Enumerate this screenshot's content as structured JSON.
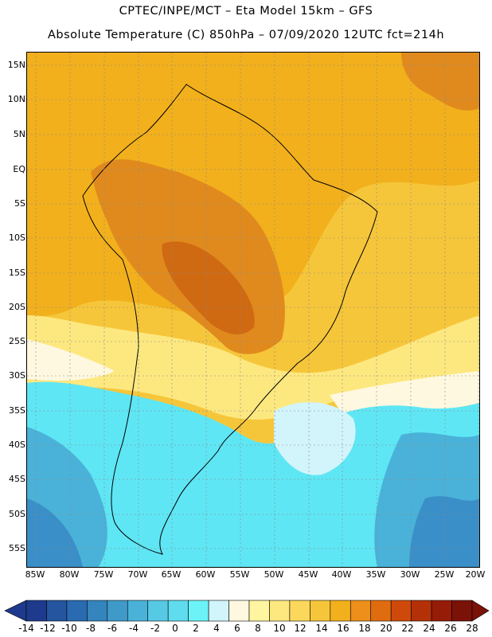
{
  "header": {
    "line1": "CPTEC/INPE/MCT  –   Eta Model 15km  –  GFS",
    "line2": "Absolute Temperature (C) 850hPa – 07/09/2020 12UTC fct=214h"
  },
  "axes": {
    "lat_labels": [
      "15N",
      "10N",
      "5N",
      "EQ",
      "5S",
      "10S",
      "15S",
      "20S",
      "25S",
      "30S",
      "35S",
      "40S",
      "45S",
      "50S",
      "55S"
    ],
    "lon_labels": [
      "85W",
      "80W",
      "75W",
      "70W",
      "65W",
      "60W",
      "55W",
      "50W",
      "45W",
      "40W",
      "35W",
      "30W",
      "25W",
      "20W"
    ]
  },
  "colorbar": {
    "labels": [
      "-14",
      "-12",
      "-10",
      "-8",
      "-6",
      "-4",
      "-2",
      "0",
      "2",
      "4",
      "6",
      "8",
      "10",
      "12",
      "14",
      "16",
      "18",
      "20",
      "22",
      "24",
      "26",
      "28"
    ],
    "colors": [
      "#1e3a8c",
      "#24559e",
      "#2a6ab0",
      "#3484bd",
      "#3f9ac9",
      "#4ab2d8",
      "#56c9e4",
      "#5fdcee",
      "#6cf3f7",
      "#d2f4fb",
      "#fff8e0",
      "#fff5a0",
      "#fde880",
      "#fbd85c",
      "#f6c63a",
      "#f2b01c",
      "#ed8f1a",
      "#e06c10",
      "#cf4a0a",
      "#b43108",
      "#961c08",
      "#7a1208"
    ]
  },
  "map_colors": {
    "ocean_deep": "#3a8fc8",
    "ocean_mid": "#4ab2d8",
    "cyan": "#5fe6f4",
    "pale": "#d2f4fb",
    "cream": "#fff8e0",
    "yellow": "#fde880",
    "gold": "#f6c63a",
    "orange": "#f2b01c",
    "dark_orange": "#e08a1e",
    "red_orange": "#cf6a12"
  }
}
